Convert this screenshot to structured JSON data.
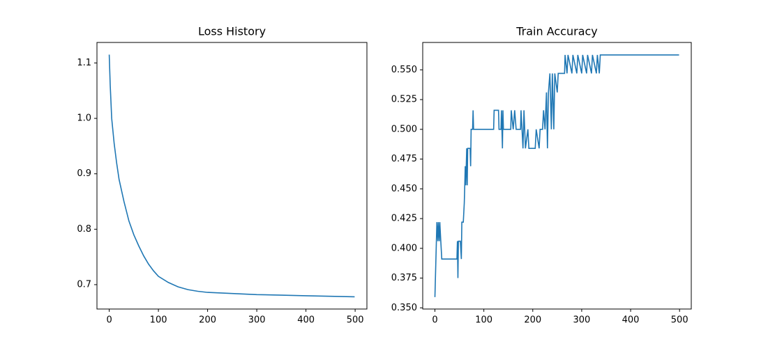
{
  "chart_data": [
    {
      "type": "line",
      "title": "Loss History",
      "color": "#1f77b4",
      "x": [
        0,
        2,
        5,
        10,
        15,
        20,
        30,
        40,
        50,
        60,
        70,
        80,
        90,
        100,
        120,
        140,
        160,
        180,
        200,
        250,
        300,
        350,
        400,
        450,
        499
      ],
      "values": [
        1.115,
        1.06,
        1.0,
        0.955,
        0.92,
        0.89,
        0.85,
        0.815,
        0.79,
        0.77,
        0.752,
        0.737,
        0.725,
        0.715,
        0.704,
        0.696,
        0.691,
        0.688,
        0.686,
        0.684,
        0.682,
        0.681,
        0.68,
        0.679,
        0.678
      ],
      "xlim": [
        -24.95,
        523.95
      ],
      "ylim": [
        0.656,
        1.137
      ],
      "xticks": [
        0,
        100,
        200,
        300,
        400,
        500
      ],
      "yticks": [
        0.7,
        0.8,
        0.9,
        {
          "value": 1,
          "label": "1.0"
        },
        1.1
      ]
    },
    {
      "type": "line",
      "title": "Train Accuracy",
      "color": "#1f77b4",
      "x": [
        0,
        3,
        4,
        6,
        7,
        9,
        10,
        12,
        14,
        45,
        46,
        47,
        48,
        52,
        54,
        55,
        58,
        60,
        61,
        62,
        63,
        65,
        66,
        67,
        72,
        73,
        74,
        77,
        78,
        79,
        120,
        121,
        130,
        131,
        135,
        136,
        138,
        139,
        140,
        155,
        156,
        160,
        163,
        166,
        175,
        176,
        180,
        182,
        185,
        190,
        192,
        205,
        207,
        213,
        215,
        220,
        222,
        225,
        228,
        230,
        232,
        235,
        238,
        240,
        243,
        245,
        250,
        252,
        265,
        266,
        270,
        272,
        280,
        282,
        290,
        292,
        300,
        302,
        310,
        312,
        320,
        322,
        330,
        332,
        336,
        338,
        499
      ],
      "values": [
        0.359,
        0.406,
        0.422,
        0.406,
        0.422,
        0.406,
        0.422,
        0.406,
        0.391,
        0.391,
        0.406,
        0.375,
        0.406,
        0.406,
        0.391,
        0.422,
        0.422,
        0.438,
        0.453,
        0.469,
        0.453,
        0.484,
        0.453,
        0.484,
        0.484,
        0.469,
        0.5,
        0.5,
        0.516,
        0.5,
        0.5,
        0.516,
        0.516,
        0.5,
        0.5,
        0.516,
        0.484,
        0.516,
        0.5,
        0.5,
        0.516,
        0.5,
        0.516,
        0.5,
        0.5,
        0.516,
        0.484,
        0.516,
        0.484,
        0.5,
        0.484,
        0.484,
        0.5,
        0.484,
        0.5,
        0.5,
        0.516,
        0.5,
        0.531,
        0.484,
        0.531,
        0.547,
        0.5,
        0.547,
        0.5,
        0.547,
        0.531,
        0.547,
        0.547,
        0.5625,
        0.547,
        0.5625,
        0.547,
        0.5625,
        0.547,
        0.5625,
        0.547,
        0.5625,
        0.547,
        0.5625,
        0.547,
        0.5625,
        0.547,
        0.5625,
        0.547,
        0.5625,
        0.5625
      ],
      "xlim": [
        -24.95,
        523.95
      ],
      "ylim": [
        0.349,
        0.573
      ],
      "xticks": [
        0,
        100,
        200,
        300,
        400,
        500
      ],
      "yticks": [
        {
          "value": 0.35,
          "label": "0.350"
        },
        {
          "value": 0.375,
          "label": "0.375"
        },
        {
          "value": 0.4,
          "label": "0.400"
        },
        {
          "value": 0.425,
          "label": "0.425"
        },
        {
          "value": 0.45,
          "label": "0.450"
        },
        {
          "value": 0.475,
          "label": "0.475"
        },
        {
          "value": 0.5,
          "label": "0.500"
        },
        {
          "value": 0.525,
          "label": "0.525"
        },
        {
          "value": 0.55,
          "label": "0.550"
        }
      ]
    }
  ]
}
